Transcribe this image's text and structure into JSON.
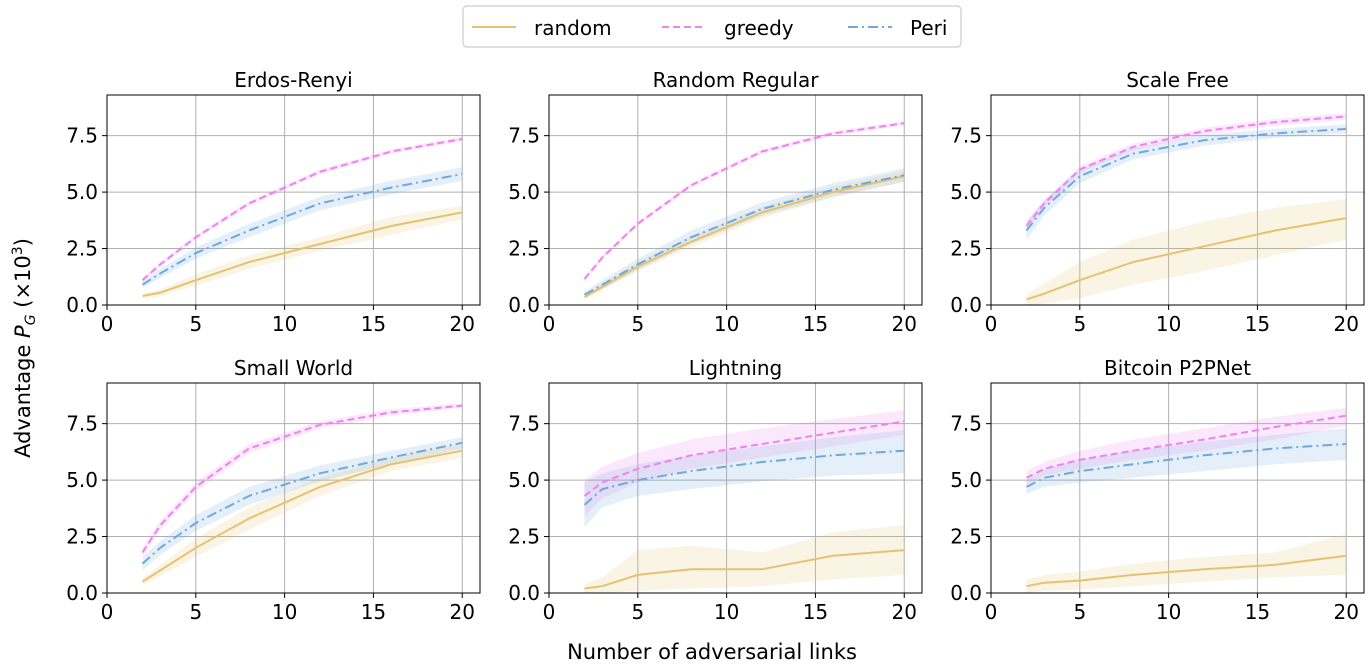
{
  "figure": {
    "ylabel": "Advantage P_G (×10³)",
    "xlabel": "Number of adversarial links"
  },
  "legend": {
    "placement": "top-center",
    "entries": [
      {
        "name": "random",
        "color": "#e6c270",
        "dash": "solid"
      },
      {
        "name": "greedy",
        "color": "#ee82ee",
        "dash": "dashed"
      },
      {
        "name": "Peri",
        "color": "#6fa8dc",
        "dash": "dashdot"
      }
    ]
  },
  "chart_data": [
    {
      "type": "line",
      "title": "Erdos-Renyi",
      "xlim": [
        0,
        21
      ],
      "ylim": [
        0,
        9.3
      ],
      "xticks": [
        "0",
        "5",
        "10",
        "15",
        "20"
      ],
      "yticks": [
        "0.0",
        "2.5",
        "5.0",
        "7.5"
      ],
      "grid": true,
      "series": [
        {
          "name": "random",
          "x": [
            2,
            3,
            5,
            8,
            12,
            16,
            20
          ],
          "y": [
            0.4,
            0.55,
            1.1,
            1.9,
            2.7,
            3.5,
            4.1
          ],
          "lower": [
            0.3,
            0.4,
            0.85,
            1.6,
            2.4,
            3.1,
            3.8
          ],
          "upper": [
            0.5,
            0.7,
            1.35,
            2.2,
            3.0,
            3.9,
            4.4
          ]
        },
        {
          "name": "greedy",
          "x": [
            2,
            3,
            5,
            8,
            12,
            16,
            20
          ],
          "y": [
            1.1,
            1.8,
            3.0,
            4.5,
            5.9,
            6.8,
            7.35
          ],
          "lower": [
            1.0,
            1.7,
            2.9,
            4.4,
            5.8,
            6.7,
            7.25
          ],
          "upper": [
            1.2,
            1.9,
            3.1,
            4.6,
            6.0,
            6.9,
            7.45
          ]
        },
        {
          "name": "Peri",
          "x": [
            2,
            3,
            5,
            8,
            12,
            16,
            20
          ],
          "y": [
            0.9,
            1.4,
            2.3,
            3.3,
            4.5,
            5.2,
            5.8
          ],
          "lower": [
            0.75,
            1.2,
            2.05,
            3.0,
            4.2,
            4.9,
            5.5
          ],
          "upper": [
            1.05,
            1.6,
            2.55,
            3.6,
            4.8,
            5.5,
            6.1
          ]
        }
      ]
    },
    {
      "type": "line",
      "title": "Random Regular",
      "xlim": [
        0,
        21
      ],
      "ylim": [
        0,
        9.3
      ],
      "xticks": [
        "0",
        "5",
        "10",
        "15",
        "20"
      ],
      "yticks": [
        "0.0",
        "2.5",
        "5.0",
        "7.5"
      ],
      "grid": true,
      "series": [
        {
          "name": "random",
          "x": [
            2,
            3,
            5,
            8,
            12,
            16,
            20
          ],
          "y": [
            0.35,
            0.8,
            1.7,
            2.8,
            4.1,
            5.0,
            5.7
          ],
          "lower": [
            0.25,
            0.65,
            1.5,
            2.55,
            3.85,
            4.75,
            5.45
          ],
          "upper": [
            0.45,
            0.95,
            1.9,
            3.05,
            4.35,
            5.25,
            5.95
          ]
        },
        {
          "name": "greedy",
          "x": [
            2,
            3,
            5,
            8,
            12,
            16,
            20
          ],
          "y": [
            1.15,
            2.1,
            3.6,
            5.3,
            6.8,
            7.6,
            8.05
          ],
          "lower": [
            1.05,
            2.0,
            3.5,
            5.2,
            6.7,
            7.5,
            7.95
          ],
          "upper": [
            1.25,
            2.2,
            3.7,
            5.4,
            6.9,
            7.7,
            8.15
          ]
        },
        {
          "name": "Peri",
          "x": [
            2,
            3,
            5,
            8,
            12,
            16,
            20
          ],
          "y": [
            0.45,
            0.9,
            1.8,
            3.0,
            4.25,
            5.1,
            5.75
          ],
          "lower": [
            0.3,
            0.7,
            1.55,
            2.7,
            3.95,
            4.8,
            5.45
          ],
          "upper": [
            0.6,
            1.1,
            2.05,
            3.3,
            4.55,
            5.4,
            6.05
          ]
        }
      ]
    },
    {
      "type": "line",
      "title": "Scale Free",
      "xlim": [
        0,
        21
      ],
      "ylim": [
        0,
        9.3
      ],
      "xticks": [
        "0",
        "5",
        "10",
        "15",
        "20"
      ],
      "yticks": [
        "0.0",
        "2.5",
        "5.0",
        "7.5"
      ],
      "grid": true,
      "series": [
        {
          "name": "random",
          "x": [
            2,
            3,
            5,
            8,
            12,
            16,
            20
          ],
          "y": [
            0.25,
            0.5,
            1.1,
            1.9,
            2.6,
            3.3,
            3.85
          ],
          "lower": [
            0.0,
            0.05,
            0.3,
            0.9,
            1.5,
            2.2,
            2.9
          ],
          "upper": [
            0.5,
            0.95,
            1.9,
            2.9,
            3.7,
            4.3,
            4.7
          ]
        },
        {
          "name": "greedy",
          "x": [
            2,
            3,
            5,
            8,
            12,
            16,
            20
          ],
          "y": [
            3.5,
            4.5,
            6.0,
            7.0,
            7.7,
            8.1,
            8.35
          ],
          "lower": [
            3.3,
            4.35,
            5.85,
            6.85,
            7.55,
            7.95,
            8.2
          ],
          "upper": [
            3.7,
            4.65,
            6.15,
            7.15,
            7.85,
            8.25,
            8.5
          ]
        },
        {
          "name": "Peri",
          "x": [
            2,
            3,
            5,
            8,
            12,
            16,
            20
          ],
          "y": [
            3.3,
            4.3,
            5.7,
            6.7,
            7.3,
            7.6,
            7.8
          ],
          "lower": [
            2.9,
            3.95,
            5.4,
            6.45,
            7.05,
            7.4,
            7.6
          ],
          "upper": [
            3.7,
            4.65,
            6.0,
            6.95,
            7.55,
            7.8,
            8.0
          ]
        }
      ]
    },
    {
      "type": "line",
      "title": "Small World",
      "xlim": [
        0,
        21
      ],
      "ylim": [
        0,
        9.3
      ],
      "xticks": [
        "0",
        "5",
        "10",
        "15",
        "20"
      ],
      "yticks": [
        "0.0",
        "2.5",
        "5.0",
        "7.5"
      ],
      "grid": true,
      "series": [
        {
          "name": "random",
          "x": [
            2,
            3,
            5,
            8,
            12,
            16,
            20
          ],
          "y": [
            0.5,
            1.0,
            2.0,
            3.3,
            4.7,
            5.7,
            6.3
          ],
          "lower": [
            0.35,
            0.75,
            1.6,
            2.8,
            4.3,
            5.4,
            6.0
          ],
          "upper": [
            0.65,
            1.25,
            2.4,
            3.8,
            5.1,
            6.0,
            6.6
          ]
        },
        {
          "name": "greedy",
          "x": [
            2,
            3,
            5,
            8,
            12,
            16,
            20
          ],
          "y": [
            1.8,
            3.0,
            4.7,
            6.4,
            7.45,
            8.0,
            8.3
          ],
          "lower": [
            1.6,
            2.8,
            4.5,
            6.2,
            7.3,
            7.85,
            8.2
          ],
          "upper": [
            2.0,
            3.2,
            4.9,
            6.6,
            7.6,
            8.15,
            8.4
          ]
        },
        {
          "name": "Peri",
          "x": [
            2,
            3,
            5,
            8,
            12,
            16,
            20
          ],
          "y": [
            1.3,
            2.0,
            3.1,
            4.3,
            5.3,
            6.0,
            6.65
          ],
          "lower": [
            1.0,
            1.7,
            2.75,
            3.9,
            4.95,
            5.7,
            6.4
          ],
          "upper": [
            1.6,
            2.3,
            3.45,
            4.7,
            5.65,
            6.3,
            6.9
          ]
        }
      ]
    },
    {
      "type": "line",
      "title": "Lightning",
      "xlim": [
        0,
        21
      ],
      "ylim": [
        0,
        9.3
      ],
      "xticks": [
        "0",
        "5",
        "10",
        "15",
        "20"
      ],
      "yticks": [
        "0.0",
        "2.5",
        "5.0",
        "7.5"
      ],
      "grid": true,
      "series": [
        {
          "name": "random",
          "x": [
            2,
            3,
            5,
            8,
            12,
            16,
            20
          ],
          "y": [
            0.2,
            0.3,
            0.8,
            1.05,
            1.05,
            1.65,
            1.9
          ],
          "lower": [
            0.0,
            0.0,
            0.1,
            0.2,
            0.3,
            0.6,
            0.8
          ],
          "upper": [
            0.4,
            0.7,
            1.9,
            2.1,
            1.8,
            2.7,
            3.0
          ]
        },
        {
          "name": "greedy",
          "x": [
            2,
            3,
            5,
            8,
            12,
            16,
            20
          ],
          "y": [
            4.3,
            4.9,
            5.5,
            6.1,
            6.6,
            7.1,
            7.6
          ],
          "lower": [
            3.4,
            4.2,
            4.9,
            5.5,
            6.0,
            6.5,
            7.0
          ],
          "upper": [
            5.0,
            5.6,
            6.2,
            6.8,
            7.3,
            7.7,
            8.1
          ]
        },
        {
          "name": "Peri",
          "x": [
            2,
            3,
            5,
            8,
            12,
            16,
            20
          ],
          "y": [
            3.9,
            4.6,
            5.0,
            5.4,
            5.8,
            6.1,
            6.3
          ],
          "lower": [
            2.9,
            3.8,
            4.3,
            4.6,
            4.95,
            5.2,
            5.3
          ],
          "upper": [
            4.9,
            5.3,
            5.7,
            6.1,
            6.5,
            6.9,
            7.2
          ]
        }
      ]
    },
    {
      "type": "line",
      "title": "Bitcoin P2PNet",
      "xlim": [
        0,
        21
      ],
      "ylim": [
        0,
        9.3
      ],
      "xticks": [
        "0",
        "5",
        "10",
        "15",
        "20"
      ],
      "yticks": [
        "0.0",
        "2.5",
        "5.0",
        "7.5"
      ],
      "grid": true,
      "series": [
        {
          "name": "random",
          "x": [
            2,
            3,
            5,
            8,
            12,
            16,
            20
          ],
          "y": [
            0.3,
            0.45,
            0.55,
            0.8,
            1.05,
            1.25,
            1.65
          ],
          "lower": [
            0.0,
            0.1,
            0.15,
            0.3,
            0.5,
            0.7,
            0.8
          ],
          "upper": [
            0.6,
            0.8,
            0.95,
            1.3,
            1.6,
            1.8,
            2.6
          ]
        },
        {
          "name": "greedy",
          "x": [
            2,
            3,
            5,
            8,
            12,
            16,
            20
          ],
          "y": [
            5.1,
            5.5,
            5.9,
            6.3,
            6.8,
            7.35,
            7.85
          ],
          "lower": [
            4.8,
            5.2,
            5.5,
            5.9,
            6.3,
            6.8,
            7.4
          ],
          "upper": [
            5.4,
            5.8,
            6.3,
            6.8,
            7.3,
            7.8,
            8.2
          ]
        },
        {
          "name": "Peri",
          "x": [
            2,
            3,
            5,
            8,
            12,
            16,
            20
          ],
          "y": [
            4.7,
            5.1,
            5.4,
            5.7,
            6.1,
            6.4,
            6.6
          ],
          "lower": [
            4.4,
            4.7,
            4.9,
            5.1,
            5.4,
            5.7,
            5.9
          ],
          "upper": [
            5.0,
            5.5,
            5.9,
            6.3,
            6.7,
            7.0,
            7.3
          ]
        }
      ]
    }
  ]
}
